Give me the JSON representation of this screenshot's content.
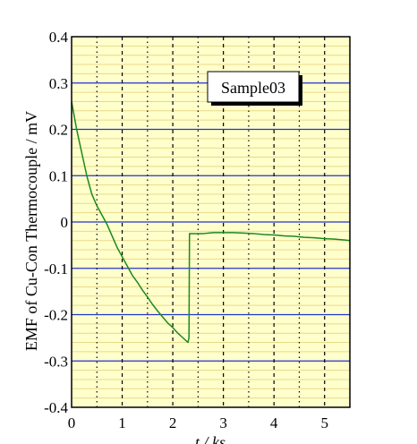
{
  "chart_data": {
    "type": "line",
    "title": "",
    "xlabel": "t / ks",
    "ylabel": "EMF of Cu-Con Thermocouple / mV",
    "xlim": [
      0,
      5.5
    ],
    "ylim": [
      -0.4,
      0.4
    ],
    "x_ticks": [
      "0",
      "1",
      "2",
      "3",
      "4",
      "5"
    ],
    "y_ticks": [
      "0.4",
      "0.3",
      "0.2",
      "0.1",
      "0",
      "-0.1",
      "-0.2",
      "-0.3",
      "-0.4"
    ],
    "grid": true,
    "legend": "top-right",
    "colors": {
      "background": "#ffffcc",
      "major_grid_y": "#2233cc",
      "minor_grid_y": "#e8d98a",
      "grid_x": "#000000",
      "series": "#1a8a1a"
    },
    "series": [
      {
        "name": "Sample03",
        "x": [
          0,
          0.1,
          0.2,
          0.3,
          0.4,
          0.5,
          0.6,
          0.7,
          0.8,
          0.9,
          1.0,
          1.1,
          1.2,
          1.3,
          1.4,
          1.5,
          1.6,
          1.7,
          1.8,
          1.9,
          2.0,
          2.1,
          2.2,
          2.3,
          2.32,
          2.33,
          2.4,
          2.6,
          2.8,
          3.0,
          3.2,
          3.4,
          3.6,
          3.8,
          4.0,
          4.2,
          4.4,
          4.6,
          4.8,
          5.0,
          5.2,
          5.4,
          5.5
        ],
        "y": [
          0.26,
          0.2,
          0.15,
          0.1,
          0.06,
          0.035,
          0.015,
          -0.005,
          -0.03,
          -0.055,
          -0.075,
          -0.095,
          -0.115,
          -0.13,
          -0.147,
          -0.162,
          -0.178,
          -0.192,
          -0.205,
          -0.218,
          -0.228,
          -0.24,
          -0.25,
          -0.26,
          -0.25,
          -0.025,
          -0.025,
          -0.025,
          -0.023,
          -0.023,
          -0.023,
          -0.024,
          -0.025,
          -0.027,
          -0.028,
          -0.03,
          -0.031,
          -0.033,
          -0.034,
          -0.036,
          -0.037,
          -0.039,
          -0.04
        ]
      }
    ]
  }
}
